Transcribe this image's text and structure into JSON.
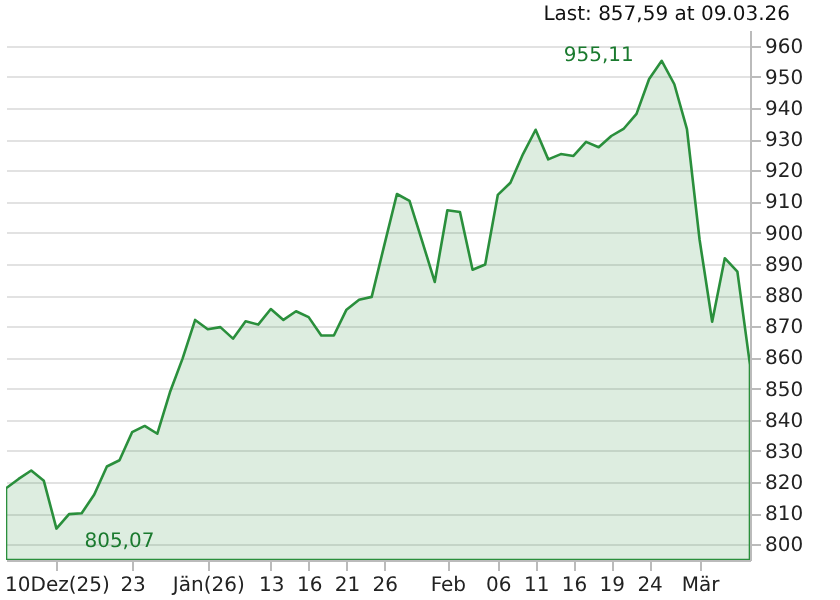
{
  "chart_data": {
    "type": "area",
    "categories": [
      null,
      null,
      null,
      null,
      "10Dez(25)",
      null,
      null,
      null,
      null,
      null,
      "23",
      null,
      null,
      null,
      null,
      null,
      "Jän(26)",
      null,
      null,
      null,
      null,
      "13",
      null,
      null,
      "16",
      null,
      null,
      "21",
      null,
      null,
      "26",
      null,
      null,
      null,
      null,
      "Feb",
      null,
      null,
      null,
      "06",
      null,
      null,
      "11",
      null,
      null,
      "16",
      null,
      null,
      "19",
      null,
      null,
      "24",
      null,
      null,
      null,
      "Mär",
      null,
      null,
      null,
      null
    ],
    "series": [
      {
        "color": "#2a8f3c",
        "values": [
          818,
          821,
          823.7,
          820.4,
          805.07,
          809.7,
          810,
          816,
          825,
          827,
          836,
          838,
          835.5,
          848.8,
          859.6,
          872,
          869,
          869.7,
          866,
          871.6,
          870.5,
          875.5,
          872,
          874.8,
          872.9,
          867,
          867,
          875.3,
          878.5,
          879.4,
          896,
          912.4,
          910.2,
          897.3,
          884.2,
          907.2,
          906.6,
          888.1,
          889.8,
          912.1,
          916,
          925.2,
          933,
          923.5,
          925.2,
          924.6,
          929.1,
          927.4,
          931,
          933.4,
          938.1,
          949.3,
          955.11,
          947.6,
          933.2,
          897.8,
          871.4,
          891.8,
          887.5,
          857.59
        ]
      }
    ],
    "ylim": [
      795,
      965
    ],
    "yticks": [
      800,
      810,
      820,
      830,
      840,
      850,
      860,
      870,
      880,
      890,
      900,
      910,
      920,
      930,
      940,
      950,
      960
    ],
    "grid": "y",
    "annotations": [
      "Last: 857,59 at 09.03.26",
      "955,11",
      {
        "text": "805,07",
        "x": "10Dez(25)",
        "y": 805.07
      }
    ]
  }
}
